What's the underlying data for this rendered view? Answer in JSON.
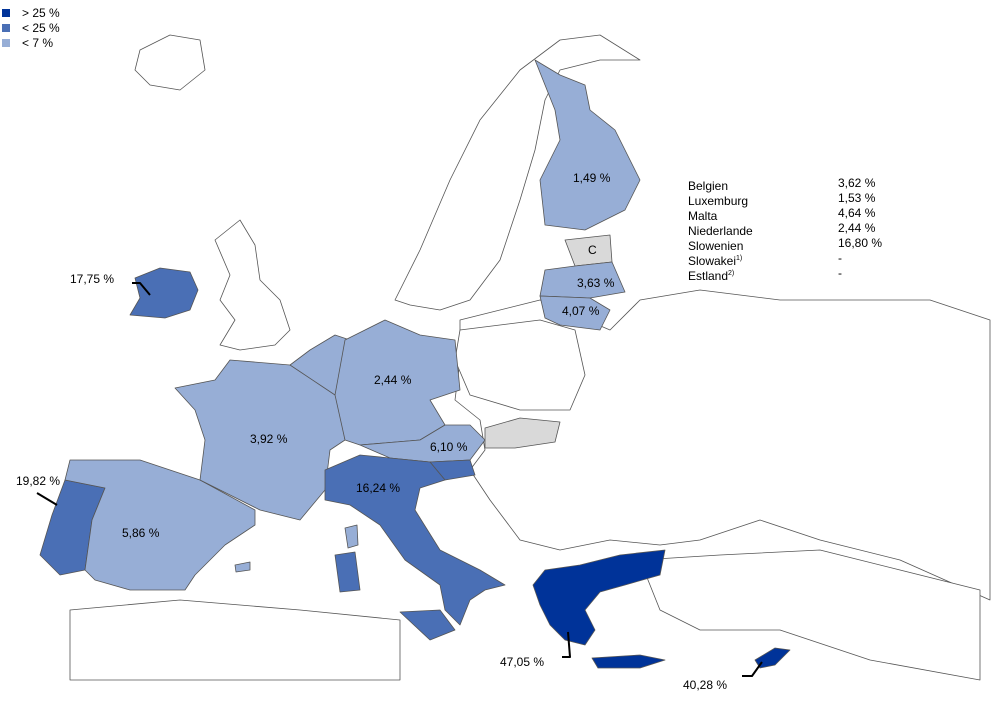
{
  "legend": [
    {
      "label": "> 25 %",
      "color": "#003399"
    },
    {
      "label": "< 25 %",
      "color": "#4a6fb5"
    },
    {
      "label": "< 7 %",
      "color": "#97aed6"
    }
  ],
  "no_data_color": "#d9d9d9",
  "countries": {
    "ireland": {
      "value": "17,75 %",
      "class": "< 25 %"
    },
    "portugal": {
      "value": "19,82 %",
      "class": "< 25 %"
    },
    "spain": {
      "value": "5,86 %",
      "class": "< 7 %"
    },
    "france": {
      "value": "3,92 %",
      "class": "< 7 %"
    },
    "germany": {
      "value": "2,44 %",
      "class": "< 7 %"
    },
    "austria": {
      "value": "6,10 %",
      "class": "< 7 %"
    },
    "italy": {
      "value": "16,24 %",
      "class": "< 25 %"
    },
    "greece": {
      "value": "47,05 %",
      "class": "> 25 %"
    },
    "cyprus": {
      "value": "40,28 %",
      "class": "> 25 %"
    },
    "finland": {
      "value": "1,49 %",
      "class": "< 7 %"
    },
    "estonia": {
      "value": "C"
    },
    "latvia": {
      "value": "3,63 %",
      "class": "< 7 %"
    },
    "lithuania": {
      "value": "4,07 %",
      "class": "< 7 %"
    }
  },
  "small_countries_table": [
    {
      "name": "Belgien",
      "sup": "",
      "value": "3,62 %"
    },
    {
      "name": "Luxemburg",
      "sup": "",
      "value": "1,53 %"
    },
    {
      "name": "Malta",
      "sup": "",
      "value": "4,64 %"
    },
    {
      "name": "Niederlande",
      "sup": "",
      "value": "2,44 %"
    },
    {
      "name": "Slowenien",
      "sup": "",
      "value": "16,80 %"
    },
    {
      "name": "Slowakei",
      "sup": "1)",
      "value": "-"
    },
    {
      "name": "Estland",
      "sup": "2)",
      "value": "-"
    }
  ]
}
